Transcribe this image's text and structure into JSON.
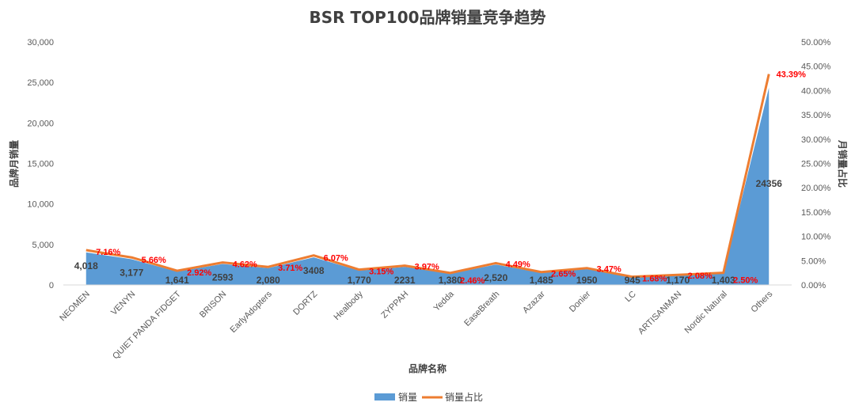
{
  "chart_data": {
    "type": "area",
    "title": "BSR TOP100品牌销量竞争趋势",
    "xlabel": "品牌名称",
    "ylabel": "品牌月销量",
    "y2label": "月销量占比",
    "categories": [
      "NEOMEN",
      "VENYN",
      "QUIET PANDA FIDGET",
      "BRISON",
      "EarlyAdopters",
      "DORTZ",
      "Healbody",
      "ZYPPAH",
      "Yedda",
      "EaseBreath",
      "Azazar",
      "Donier",
      "LC",
      "ARTISANMAN",
      "Nordic Natural",
      "Others"
    ],
    "series": [
      {
        "name": "销量",
        "type": "area",
        "color": "#5b9bd5",
        "values": [
          4018,
          3177,
          1641,
          2593,
          2080,
          3408,
          1770,
          2231,
          1380,
          2520,
          1485,
          1950,
          945,
          1170,
          1403,
          24356
        ],
        "labels": [
          "4,018",
          "3,177",
          "1,641",
          "2593",
          "2,080",
          "3408",
          "1,770",
          "2231",
          "1,380",
          "2,520",
          "1,485",
          "1950",
          "945",
          "1,170",
          "1,403",
          "24356"
        ]
      },
      {
        "name": "销量占比",
        "type": "line",
        "color": "#ed7d31",
        "axis": "right",
        "values": [
          7.16,
          5.66,
          2.92,
          4.62,
          3.71,
          6.07,
          3.15,
          3.97,
          2.46,
          4.49,
          2.65,
          3.47,
          1.68,
          2.08,
          2.5,
          43.39
        ],
        "labels": [
          "7.16%",
          "5.66%",
          "2.92%",
          "4.62%",
          "3.71%",
          "6.07%",
          "3.15%",
          "3.97%",
          "2.46%",
          "4.49%",
          "2.65%",
          "3.47%",
          "1.68%",
          "2.08%",
          "2.50%",
          "43.39%"
        ]
      }
    ],
    "ylim": [
      0,
      30000
    ],
    "yticks": [
      "0",
      "5,000",
      "10,000",
      "15,000",
      "20,000",
      "25,000",
      "30,000"
    ],
    "y2lim": [
      0,
      50
    ],
    "y2ticks": [
      "0.00%",
      "5.00%",
      "10.00%",
      "15.00%",
      "20.00%",
      "25.00%",
      "30.00%",
      "35.00%",
      "40.00%",
      "45.00%",
      "50.00%"
    ],
    "grid": false,
    "legend": "bottom",
    "label_color": "#ff0000"
  }
}
